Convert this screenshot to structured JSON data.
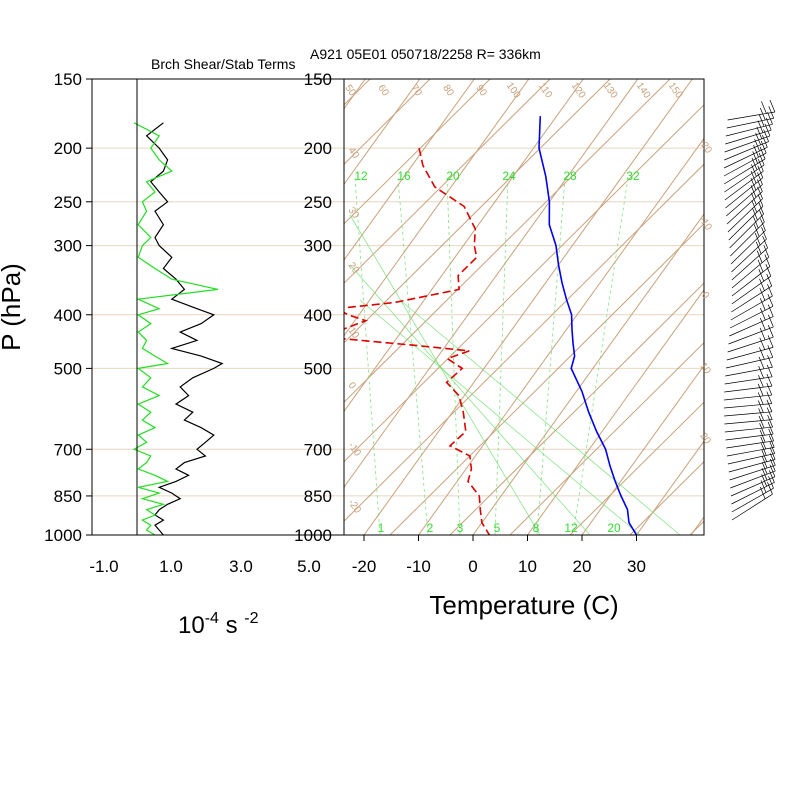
{
  "panel_left": {
    "title": "Brch Shear/Stab Terms",
    "xticks": [
      "-1.0",
      "1.0",
      "3.0",
      "5.0"
    ],
    "unit": {
      "base": "10",
      "exp": "-4",
      "mid": " s ",
      "exp2": "-2"
    }
  },
  "header": {
    "title": "A921 05E01 050718/2258 R= 336km"
  },
  "axes": {
    "ylabel": "P (hPa)",
    "xlabel": "Temperature (C)",
    "pressure_ticks": [
      "150",
      "200",
      "250",
      "300",
      "400",
      "500",
      "700",
      "850",
      "1000"
    ],
    "temp_ticks": [
      "-20",
      "-10",
      "0",
      "10",
      "20",
      "30"
    ],
    "mixing_ratio_labels": [
      "12",
      "16",
      "20",
      "24",
      "28",
      "32"
    ],
    "mixing_ratio_bottom_labels": [
      "1",
      "2",
      "3",
      "5",
      "8",
      "12",
      "20"
    ],
    "dry_adiabat_labels": [
      "50",
      "60",
      "70",
      "80",
      "90",
      "100",
      "110",
      "120",
      "130",
      "140",
      "150"
    ],
    "side_adiabat_labels": [
      "40",
      "30",
      "20",
      "10",
      "0",
      "-10",
      "-20"
    ],
    "right_labels": [
      "-20",
      "-10",
      "0",
      "10",
      "20"
    ]
  },
  "chart_data": [
    {
      "type": "line",
      "title": "Brch Shear/Stab Terms",
      "xlabel": "10-4 s -2",
      "ylabel": "P (hPa)",
      "xlim": [
        -1.0,
        5.0
      ],
      "ylim": [
        1000,
        150
      ],
      "y_scale": "log",
      "series": [
        {
          "color": "#000000",
          "pressure": [
            180,
            190,
            200,
            210,
            220,
            230,
            240,
            250,
            260,
            275,
            290,
            300,
            315,
            330,
            345,
            360,
            375,
            390,
            400,
            415,
            430,
            445,
            460,
            475,
            490,
            500,
            520,
            540,
            560,
            580,
            600,
            620,
            640,
            660,
            680,
            700,
            720,
            740,
            760,
            780,
            800,
            820,
            840,
            860,
            880,
            900,
            920,
            940,
            960,
            980,
            1000
          ],
          "values": [
            0.7,
            0.3,
            0.6,
            0.8,
            0.7,
            0.4,
            0.6,
            0.8,
            0.5,
            0.7,
            0.5,
            0.6,
            0.9,
            0.7,
            1.0,
            1.2,
            0.9,
            1.5,
            1.9,
            1.6,
            1.1,
            1.5,
            0.9,
            1.6,
            2.1,
            1.9,
            1.4,
            1.1,
            1.3,
            1.0,
            1.4,
            1.2,
            1.6,
            1.9,
            1.7,
            1.5,
            1.7,
            1.2,
            1.0,
            1.3,
            1.0,
            0.6,
            0.9,
            1.1,
            0.8,
            0.6,
            0.5,
            0.7,
            0.5,
            0.6,
            0.7
          ]
        },
        {
          "color": "#22dd22",
          "pressure": [
            180,
            190,
            200,
            210,
            220,
            230,
            240,
            250,
            260,
            275,
            290,
            300,
            315,
            330,
            345,
            360,
            375,
            390,
            400,
            415,
            430,
            445,
            460,
            475,
            490,
            500,
            520,
            540,
            560,
            580,
            600,
            620,
            640,
            660,
            680,
            700,
            720,
            740,
            760,
            780,
            800,
            820,
            840,
            860,
            880,
            900,
            920,
            940,
            960,
            980,
            1000
          ],
          "values": [
            0.0,
            0.6,
            0.4,
            0.6,
            0.9,
            0.3,
            0.5,
            0.2,
            0.3,
            0.1,
            0.4,
            0.2,
            0.1,
            0.5,
            0.9,
            2.0,
            0.1,
            0.6,
            0.1,
            0.4,
            0.1,
            0.3,
            0.2,
            0.5,
            0.8,
            0.1,
            0.4,
            0.2,
            0.6,
            0.1,
            0.4,
            0.2,
            0.5,
            0.1,
            0.3,
            0.0,
            0.4,
            0.3,
            0.1,
            0.5,
            0.8,
            0.1,
            0.6,
            0.2,
            0.7,
            0.3,
            0.5,
            0.2,
            0.4,
            0.3,
            0.5
          ]
        }
      ]
    },
    {
      "type": "line",
      "subtype": "skew-t",
      "title": "A921 05E01 050718/2258 R= 336km",
      "xlabel": "Temperature (C)",
      "ylabel": "P (hPa)",
      "xlim": [
        -23,
        40
      ],
      "ylim": [
        1000,
        150
      ],
      "y_scale": "log",
      "series": [
        {
          "color": "#0000ee",
          "style": "solid",
          "pressure": [
            175,
            200,
            225,
            250,
            275,
            300,
            325,
            350,
            375,
            400,
            425,
            450,
            475,
            500,
            550,
            600,
            650,
            700,
            750,
            800,
            850,
            900,
            950,
            1000
          ],
          "temperature": [
            -43,
            -39,
            -34,
            -30,
            -27,
            -23,
            -20,
            -17,
            -14,
            -11,
            -9,
            -7,
            -5,
            -4,
            1,
            5,
            9,
            13,
            16,
            19,
            22,
            25,
            27,
            30
          ]
        },
        {
          "color": "#dd0000",
          "style": "dashed",
          "pressure": [
            200,
            215,
            235,
            255,
            280,
            300,
            315,
            340,
            360,
            380,
            390,
            400,
            410,
            425,
            440,
            455,
            465,
            480,
            500,
            530,
            560,
            600,
            650,
            690,
            720,
            760,
            800,
            850,
            900,
            950,
            1000
          ],
          "temperature": [
            -61,
            -58,
            -53,
            -45,
            -40,
            -38,
            -36,
            -37,
            -35,
            -45,
            -55,
            -52,
            -48,
            -51,
            -52,
            -35,
            -25,
            -28,
            -24,
            -25,
            -21,
            -18,
            -15,
            -16,
            -11,
            -9,
            -8,
            -4,
            -2,
            0,
            3
          ]
        }
      ]
    }
  ]
}
